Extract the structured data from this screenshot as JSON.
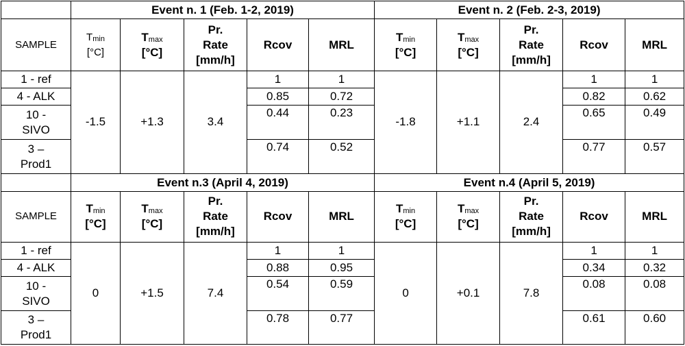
{
  "sample_header": "SAMPLE",
  "col_headers": {
    "tmin_main": "T",
    "tmin_sub": "min",
    "tmax_main": "T",
    "tmax_sub": "max",
    "unit_c": "[°C]",
    "pr_line1": "Pr.",
    "pr_line2": "Rate",
    "pr_line3": "[mm/h]",
    "rcov": "Rcov",
    "mrl": "MRL"
  },
  "samples": [
    {
      "line1": "1 - ref",
      "line2": ""
    },
    {
      "line1": "4 - ALK",
      "line2": ""
    },
    {
      "line1": "10 -",
      "line2": "SIVO"
    },
    {
      "line1": "3 –",
      "line2": "Prod1"
    }
  ],
  "events": [
    {
      "title": "Event n. 1 (Feb. 1-2, 2019)",
      "tmin": "-1.5",
      "tmax": "+1.3",
      "rate": "3.4",
      "rcov": [
        "1",
        "0.85",
        "0.44",
        "0.74"
      ],
      "mrl": [
        "1",
        "0.72",
        "0.23",
        "0.52"
      ]
    },
    {
      "title": "Event n. 2 (Feb. 2-3, 2019)",
      "tmin": "-1.8",
      "tmax": "+1.1",
      "rate": "2.4",
      "rcov": [
        "1",
        "0.82",
        "0.65",
        "0.77"
      ],
      "mrl": [
        "1",
        "0.62",
        "0.49",
        "0.57"
      ]
    },
    {
      "title": "Event n.3 (April 4, 2019)",
      "tmin": "0",
      "tmax": "+1.5",
      "rate": "7.4",
      "rcov": [
        "1",
        "0.88",
        "0.54",
        "0.78"
      ],
      "mrl": [
        "1",
        "0.95",
        "0.59",
        "0.77"
      ]
    },
    {
      "title": "Event n.4 (April 5, 2019)",
      "tmin": "0",
      "tmax": "+0.1",
      "rate": "7.8",
      "rcov": [
        "1",
        "0.34",
        "0.08",
        "0.61"
      ],
      "mrl": [
        "1",
        "0.32",
        "0.08",
        "0.60"
      ]
    }
  ]
}
